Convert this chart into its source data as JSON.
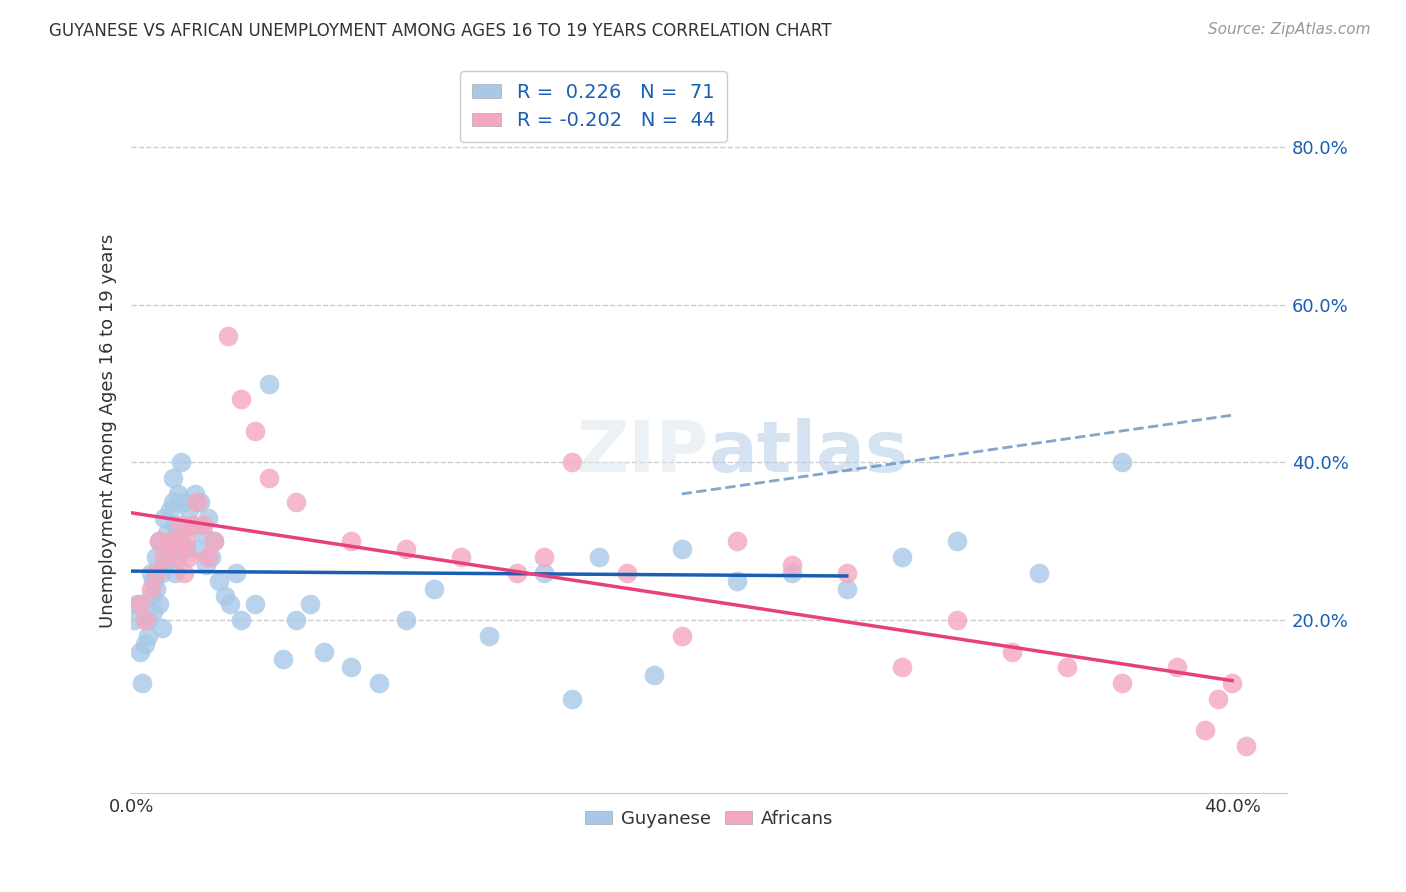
{
  "title": "GUYANESE VS AFRICAN UNEMPLOYMENT AMONG AGES 16 TO 19 YEARS CORRELATION CHART",
  "source": "Source: ZipAtlas.com",
  "ylabel": "Unemployment Among Ages 16 to 19 years",
  "xlim": [
    0.0,
    0.42
  ],
  "ylim": [
    -0.02,
    0.9
  ],
  "xtick_positions": [
    0.0,
    0.4
  ],
  "xticklabels": [
    "0.0%",
    "40.0%"
  ],
  "ytick_positions": [
    0.2,
    0.4,
    0.6,
    0.8
  ],
  "yticklabels": [
    "20.0%",
    "40.0%",
    "60.0%",
    "80.0%"
  ],
  "guyanese_R": 0.226,
  "guyanese_N": 71,
  "africans_R": -0.202,
  "africans_N": 44,
  "guyanese_color": "#a8c8e8",
  "africans_color": "#f4a8c0",
  "guyanese_line_color": "#1a5fb4",
  "africans_line_color": "#e8407a",
  "dash_line_color": "#6090c0",
  "background_color": "#ffffff",
  "grid_color": "#cccccc",
  "legend_text_color": "#1a5fb4",
  "guyanese_x": [
    0.001,
    0.002,
    0.003,
    0.004,
    0.005,
    0.006,
    0.006,
    0.007,
    0.007,
    0.008,
    0.008,
    0.009,
    0.009,
    0.01,
    0.01,
    0.011,
    0.011,
    0.012,
    0.012,
    0.013,
    0.013,
    0.014,
    0.014,
    0.015,
    0.015,
    0.016,
    0.016,
    0.017,
    0.017,
    0.018,
    0.018,
    0.019,
    0.02,
    0.021,
    0.022,
    0.023,
    0.024,
    0.025,
    0.026,
    0.027,
    0.028,
    0.029,
    0.03,
    0.032,
    0.034,
    0.036,
    0.038,
    0.04,
    0.045,
    0.05,
    0.055,
    0.06,
    0.065,
    0.07,
    0.08,
    0.09,
    0.1,
    0.11,
    0.13,
    0.15,
    0.16,
    0.17,
    0.19,
    0.2,
    0.22,
    0.24,
    0.26,
    0.28,
    0.3,
    0.33,
    0.36
  ],
  "guyanese_y": [
    0.2,
    0.22,
    0.16,
    0.12,
    0.17,
    0.2,
    0.18,
    0.23,
    0.26,
    0.21,
    0.25,
    0.28,
    0.24,
    0.3,
    0.22,
    0.26,
    0.19,
    0.33,
    0.27,
    0.31,
    0.28,
    0.34,
    0.3,
    0.35,
    0.38,
    0.32,
    0.26,
    0.36,
    0.28,
    0.4,
    0.3,
    0.35,
    0.29,
    0.34,
    0.32,
    0.36,
    0.29,
    0.35,
    0.31,
    0.27,
    0.33,
    0.28,
    0.3,
    0.25,
    0.23,
    0.22,
    0.26,
    0.2,
    0.22,
    0.5,
    0.15,
    0.2,
    0.22,
    0.16,
    0.14,
    0.12,
    0.2,
    0.24,
    0.18,
    0.26,
    0.1,
    0.28,
    0.13,
    0.29,
    0.25,
    0.26,
    0.24,
    0.28,
    0.3,
    0.26,
    0.4
  ],
  "africans_x": [
    0.003,
    0.005,
    0.007,
    0.009,
    0.01,
    0.012,
    0.014,
    0.016,
    0.017,
    0.018,
    0.019,
    0.02,
    0.021,
    0.022,
    0.024,
    0.026,
    0.028,
    0.03,
    0.035,
    0.04,
    0.045,
    0.05,
    0.06,
    0.08,
    0.1,
    0.12,
    0.14,
    0.15,
    0.16,
    0.18,
    0.2,
    0.22,
    0.24,
    0.26,
    0.28,
    0.3,
    0.32,
    0.34,
    0.36,
    0.38,
    0.39,
    0.395,
    0.4,
    0.405
  ],
  "africans_y": [
    0.22,
    0.2,
    0.24,
    0.26,
    0.3,
    0.28,
    0.3,
    0.28,
    0.3,
    0.32,
    0.26,
    0.3,
    0.28,
    0.32,
    0.35,
    0.32,
    0.28,
    0.3,
    0.56,
    0.48,
    0.44,
    0.38,
    0.35,
    0.3,
    0.29,
    0.28,
    0.26,
    0.28,
    0.4,
    0.26,
    0.18,
    0.3,
    0.27,
    0.26,
    0.14,
    0.2,
    0.16,
    0.14,
    0.12,
    0.14,
    0.06,
    0.1,
    0.12,
    0.04
  ]
}
